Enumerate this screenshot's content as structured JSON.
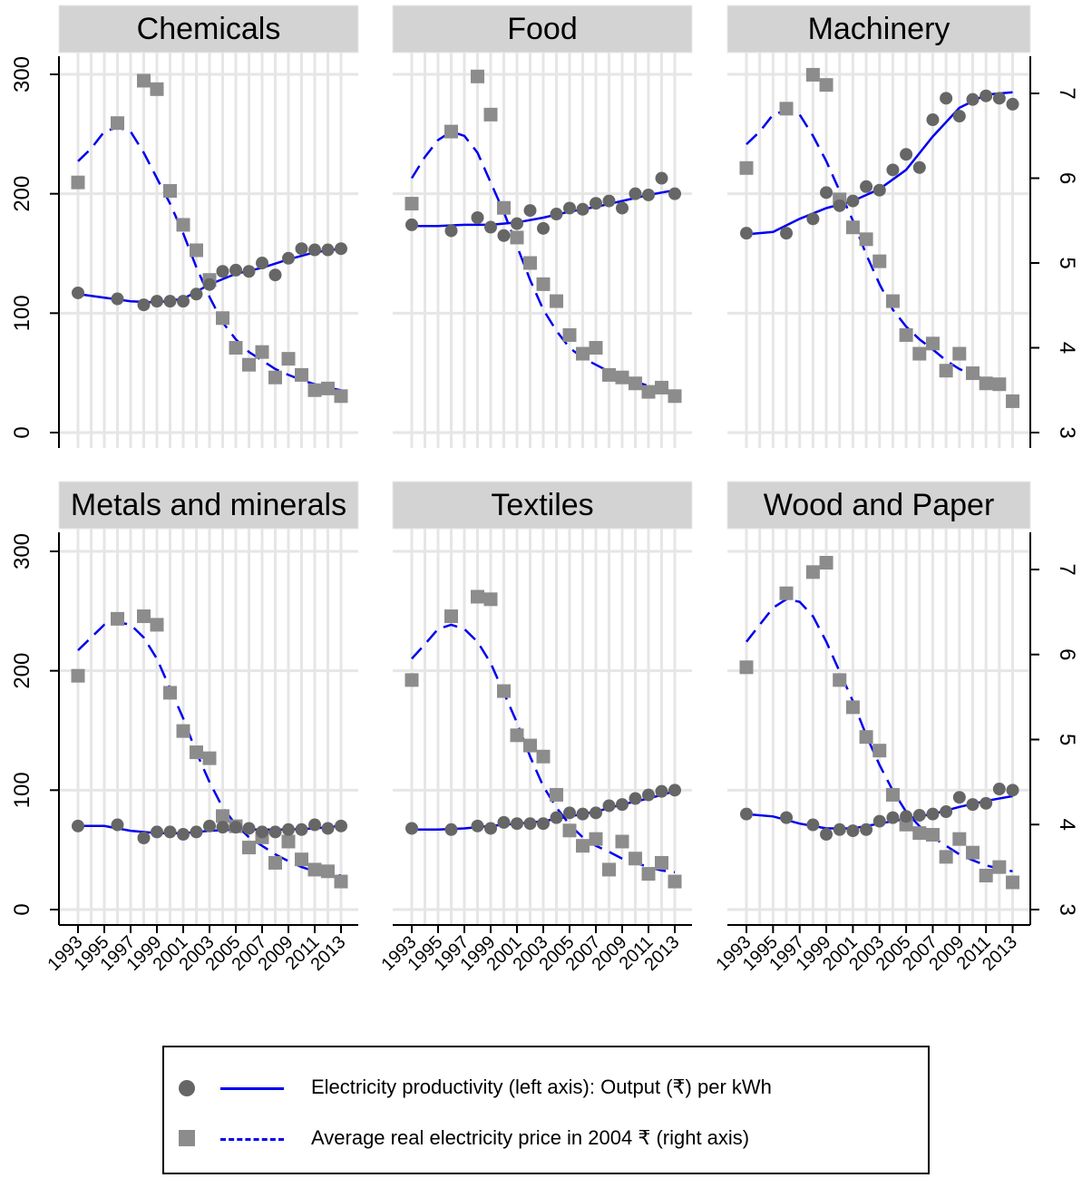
{
  "chart_data": {
    "type": "scatter",
    "x_tick_labels": [
      "1993",
      "1995",
      "1997",
      "1999",
      "2001",
      "2003",
      "2005",
      "2007",
      "2009",
      "2011",
      "2013"
    ],
    "left_axis": {
      "ticks": [
        "0",
        "100",
        "200",
        "300"
      ],
      "ylim": [
        0,
        315
      ]
    },
    "right_axis": {
      "ticks": [
        "3",
        "4",
        "5",
        "6",
        "7"
      ],
      "ylim": [
        2.95,
        7.45
      ]
    },
    "grid": true,
    "legend_position": "bottom",
    "colors": {
      "productivity_marker": "#666666",
      "price_marker": "#8c8c8c",
      "fit_line": "#0000ee",
      "panel_header": "#d3d3d3"
    },
    "legend": [
      {
        "label": "Electricity productivity (left axis): Output (₹) per kWh",
        "marker": "circle",
        "line": "solid"
      },
      {
        "label": "Average real electricity price in 2004 ₹ (right axis)",
        "marker": "square",
        "line": "dashed"
      }
    ],
    "panels": [
      {
        "title": "Chemicals",
        "productivity": {
          "x": [
            1993,
            1996,
            1998,
            1999,
            2000,
            2001,
            2002,
            2003,
            2004,
            2005,
            2006,
            2007,
            2008,
            2009,
            2010,
            2011,
            2012,
            2013
          ],
          "y": [
            117,
            112,
            107,
            110,
            110,
            110,
            116,
            124,
            135,
            136,
            135,
            142,
            132,
            146,
            154,
            153,
            153,
            154
          ]
        },
        "productivity_fit": {
          "x": [
            1993,
            1995,
            1997,
            1999,
            2001,
            2003,
            2005,
            2007,
            2009,
            2011,
            2013
          ],
          "y": [
            116,
            113,
            110,
            109,
            112,
            124,
            133,
            138,
            145,
            151,
            154
          ]
        },
        "price": {
          "x": [
            1993,
            1996,
            1998,
            1999,
            2000,
            2001,
            2002,
            2003,
            2004,
            2005,
            2006,
            2007,
            2008,
            2009,
            2010,
            2011,
            2012,
            2013
          ],
          "y": [
            5.95,
            6.65,
            7.15,
            7.05,
            5.85,
            5.45,
            5.15,
            4.8,
            4.35,
            4.0,
            3.8,
            3.95,
            3.65,
            3.87,
            3.68,
            3.5,
            3.52,
            3.43
          ]
        },
        "price_fit": {
          "x": [
            1993,
            1994,
            1995,
            1996,
            1997,
            1998,
            1999,
            2000,
            2001,
            2002,
            2003,
            2004,
            2005,
            2006,
            2007,
            2008,
            2009,
            2010,
            2011,
            2012,
            2013
          ],
          "y": [
            6.2,
            6.35,
            6.55,
            6.6,
            6.55,
            6.3,
            6.0,
            5.7,
            5.35,
            4.95,
            4.6,
            4.3,
            4.1,
            3.95,
            3.85,
            3.75,
            3.68,
            3.62,
            3.57,
            3.53,
            3.5
          ]
        }
      },
      {
        "title": "Food",
        "productivity": {
          "x": [
            1993,
            1996,
            1998,
            1999,
            2000,
            2001,
            2002,
            2003,
            2004,
            2005,
            2006,
            2007,
            2008,
            2009,
            2010,
            2011,
            2012,
            2013
          ],
          "y": [
            174,
            169,
            180,
            172,
            165,
            175,
            186,
            171,
            183,
            188,
            187,
            192,
            194,
            188,
            200,
            199,
            213,
            200
          ]
        },
        "productivity_fit": {
          "x": [
            1993,
            1995,
            1997,
            1999,
            2001,
            2003,
            2005,
            2007,
            2009,
            2011,
            2013
          ],
          "y": [
            173,
            173,
            174,
            174,
            176,
            180,
            185,
            189,
            194,
            199,
            203
          ]
        },
        "price": {
          "x": [
            1993,
            1996,
            1998,
            1999,
            2000,
            2001,
            2002,
            2003,
            2004,
            2005,
            2006,
            2007,
            2008,
            2009,
            2010,
            2011,
            2012,
            2013
          ],
          "y": [
            5.7,
            6.55,
            7.2,
            6.75,
            5.65,
            5.3,
            5.0,
            4.75,
            4.55,
            4.15,
            3.93,
            4.0,
            3.68,
            3.65,
            3.58,
            3.48,
            3.53,
            3.43
          ]
        },
        "price_fit": {
          "x": [
            1993,
            1994,
            1995,
            1996,
            1997,
            1998,
            1999,
            2000,
            2001,
            2002,
            2003,
            2004,
            2005,
            2006,
            2007,
            2008,
            2009,
            2010,
            2011,
            2012,
            2013
          ],
          "y": [
            6.0,
            6.25,
            6.45,
            6.55,
            6.5,
            6.3,
            5.95,
            5.6,
            5.2,
            4.8,
            4.45,
            4.2,
            4.0,
            3.88,
            3.8,
            3.72,
            3.66,
            3.6,
            3.55,
            3.5,
            3.48
          ]
        }
      },
      {
        "title": "Machinery",
        "productivity": {
          "x": [
            1993,
            1996,
            1998,
            1999,
            2000,
            2001,
            2002,
            2003,
            2004,
            2005,
            2006,
            2007,
            2008,
            2009,
            2010,
            2011,
            2012,
            2013
          ],
          "y": [
            167,
            167,
            179,
            201,
            190,
            194,
            206,
            203,
            220,
            233,
            222,
            262,
            280,
            265,
            279,
            282,
            280,
            275
          ]
        },
        "productivity_fit": {
          "x": [
            1993,
            1995,
            1997,
            1999,
            2001,
            2003,
            2005,
            2007,
            2009,
            2011,
            2013
          ],
          "y": [
            166,
            168,
            179,
            188,
            194,
            204,
            220,
            248,
            272,
            283,
            285
          ]
        },
        "price": {
          "x": [
            1993,
            1996,
            1998,
            1999,
            2000,
            2001,
            2002,
            2003,
            2004,
            2005,
            2006,
            2007,
            2008,
            2009,
            2010,
            2011,
            2012,
            2013
          ],
          "y": [
            6.12,
            6.82,
            7.22,
            7.1,
            5.75,
            5.42,
            5.28,
            5.02,
            4.55,
            4.15,
            3.93,
            4.05,
            3.73,
            3.93,
            3.7,
            3.58,
            3.57,
            3.37
          ]
        },
        "price_fit": {
          "x": [
            1993,
            1994,
            1995,
            1996,
            1997,
            1998,
            1999,
            2000,
            2001,
            2002,
            2003,
            2004,
            2005,
            2006,
            2007,
            2008,
            2009,
            2010,
            2011,
            2012,
            2013
          ],
          "y": [
            6.4,
            6.55,
            6.75,
            6.8,
            6.75,
            6.5,
            6.2,
            5.85,
            5.5,
            5.1,
            4.75,
            4.45,
            4.25,
            4.1,
            3.98,
            3.85,
            3.75,
            3.68,
            3.62,
            3.58,
            3.55
          ]
        }
      },
      {
        "title": "Metals and minerals",
        "productivity": {
          "x": [
            1993,
            1996,
            1998,
            1999,
            2000,
            2001,
            2002,
            2003,
            2004,
            2005,
            2006,
            2007,
            2008,
            2009,
            2010,
            2011,
            2012,
            2013
          ],
          "y": [
            70,
            71,
            60,
            65,
            65,
            63,
            65,
            70,
            69,
            69,
            68,
            65,
            65,
            67,
            67,
            71,
            68,
            70
          ]
        },
        "productivity_fit": {
          "x": [
            1993,
            1995,
            1997,
            1999,
            2001,
            2003,
            2005,
            2007,
            2009,
            2011,
            2013
          ],
          "y": [
            70,
            70,
            66,
            64,
            64,
            66,
            67,
            67,
            67,
            68,
            70
          ]
        },
        "price": {
          "x": [
            1993,
            1996,
            1998,
            1999,
            2000,
            2001,
            2002,
            2003,
            2004,
            2005,
            2006,
            2007,
            2008,
            2009,
            2010,
            2011,
            2012,
            2013
          ],
          "y": [
            5.75,
            6.42,
            6.45,
            6.35,
            5.55,
            5.1,
            4.85,
            4.78,
            4.1,
            3.98,
            3.73,
            3.85,
            3.55,
            3.8,
            3.59,
            3.47,
            3.45,
            3.33
          ]
        },
        "price_fit": {
          "x": [
            1993,
            1994,
            1995,
            1996,
            1997,
            1998,
            1999,
            2000,
            2001,
            2002,
            2003,
            2004,
            2005,
            2006,
            2007,
            2008,
            2009,
            2010,
            2011,
            2012,
            2013
          ],
          "y": [
            6.05,
            6.2,
            6.35,
            6.38,
            6.35,
            6.2,
            5.95,
            5.6,
            5.25,
            4.85,
            4.5,
            4.2,
            4.0,
            3.85,
            3.75,
            3.65,
            3.57,
            3.5,
            3.45,
            3.42,
            3.4
          ]
        }
      },
      {
        "title": "Textiles",
        "productivity": {
          "x": [
            1993,
            1996,
            1998,
            1999,
            2000,
            2001,
            2002,
            2003,
            2004,
            2005,
            2006,
            2007,
            2008,
            2009,
            2010,
            2011,
            2012,
            2013
          ],
          "y": [
            68,
            67,
            70,
            68,
            73,
            72,
            72,
            72,
            77,
            81,
            80,
            81,
            87,
            88,
            93,
            96,
            99,
            100
          ]
        },
        "productivity_fit": {
          "x": [
            1993,
            1995,
            1997,
            1999,
            2001,
            2003,
            2005,
            2007,
            2009,
            2011,
            2013
          ],
          "y": [
            67,
            67,
            68,
            70,
            72,
            74,
            78,
            82,
            88,
            93,
            99
          ]
        },
        "price": {
          "x": [
            1993,
            1996,
            1998,
            1999,
            2000,
            2001,
            2002,
            2003,
            2004,
            2005,
            2006,
            2007,
            2008,
            2009,
            2010,
            2011,
            2012,
            2013
          ],
          "y": [
            5.7,
            6.45,
            6.68,
            6.65,
            5.57,
            5.05,
            4.93,
            4.8,
            4.35,
            3.93,
            3.75,
            3.83,
            3.47,
            3.8,
            3.6,
            3.42,
            3.55,
            3.33
          ]
        },
        "price_fit": {
          "x": [
            1993,
            1994,
            1995,
            1996,
            1997,
            1998,
            1999,
            2000,
            2001,
            2002,
            2003,
            2004,
            2005,
            2006,
            2007,
            2008,
            2009,
            2010,
            2011,
            2012,
            2013
          ],
          "y": [
            5.95,
            6.12,
            6.3,
            6.35,
            6.3,
            6.15,
            5.9,
            5.55,
            5.2,
            4.8,
            4.45,
            4.2,
            4.0,
            3.85,
            3.75,
            3.68,
            3.6,
            3.55,
            3.5,
            3.46,
            3.44
          ]
        }
      },
      {
        "title": "Wood and Paper",
        "productivity": {
          "x": [
            1993,
            1996,
            1998,
            1999,
            2000,
            2001,
            2002,
            2003,
            2004,
            2005,
            2006,
            2007,
            2008,
            2009,
            2010,
            2011,
            2012,
            2013
          ],
          "y": [
            80,
            77,
            71,
            63,
            67,
            66,
            67,
            74,
            77,
            78,
            79,
            80,
            82,
            94,
            88,
            89,
            101,
            100
          ]
        },
        "productivity_fit": {
          "x": [
            1993,
            1995,
            1997,
            1999,
            2001,
            2003,
            2005,
            2007,
            2009,
            2011,
            2013
          ],
          "y": [
            80,
            78,
            72,
            68,
            68,
            72,
            76,
            80,
            86,
            91,
            95
          ]
        },
        "price": {
          "x": [
            1993,
            1996,
            1998,
            1999,
            2000,
            2001,
            2002,
            2003,
            2004,
            2005,
            2006,
            2007,
            2008,
            2009,
            2010,
            2011,
            2012,
            2013
          ],
          "y": [
            5.85,
            6.72,
            6.97,
            7.08,
            5.7,
            5.38,
            5.03,
            4.87,
            4.35,
            4.0,
            3.9,
            3.88,
            3.62,
            3.83,
            3.67,
            3.4,
            3.5,
            3.32
          ]
        },
        "price_fit": {
          "x": [
            1993,
            1994,
            1995,
            1996,
            1997,
            1998,
            1999,
            2000,
            2001,
            2002,
            2003,
            2004,
            2005,
            2006,
            2007,
            2008,
            2009,
            2010,
            2011,
            2012,
            2013
          ],
          "y": [
            6.15,
            6.35,
            6.55,
            6.65,
            6.62,
            6.45,
            6.15,
            5.8,
            5.45,
            5.05,
            4.7,
            4.4,
            4.15,
            3.98,
            3.85,
            3.75,
            3.65,
            3.58,
            3.52,
            3.48,
            3.45
          ]
        }
      }
    ]
  }
}
